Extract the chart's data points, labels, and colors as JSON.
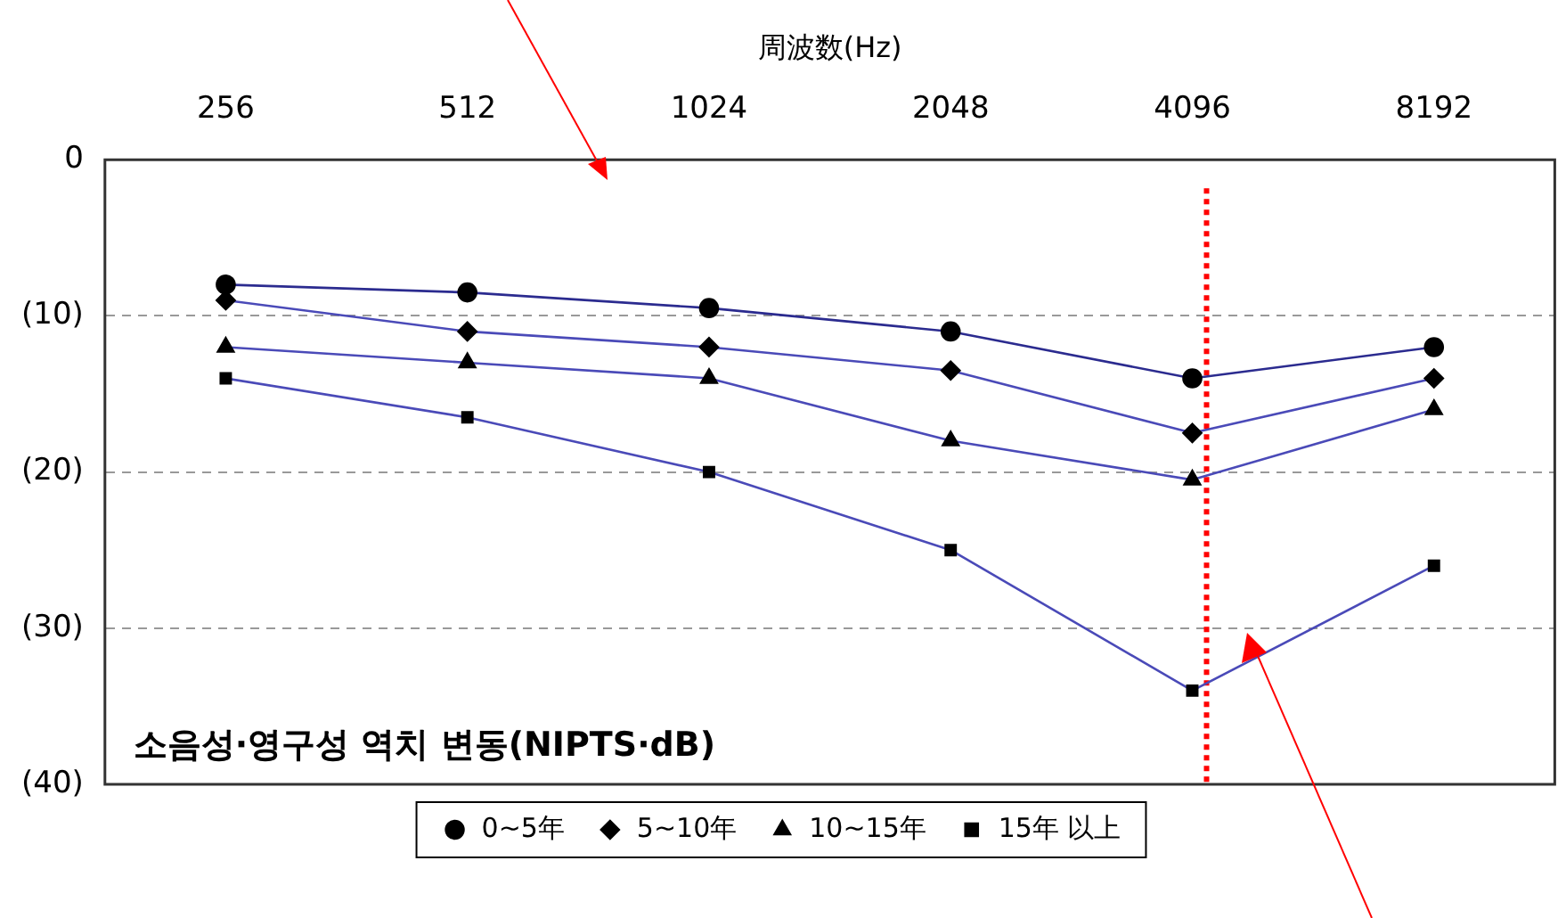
{
  "chart_data": {
    "type": "line",
    "xlabel": "周波数(Hz)",
    "categories": [
      "256",
      "512",
      "1024",
      "2048",
      "4096",
      "8192"
    ],
    "series": [
      {
        "name": "0~5年",
        "color": "#2b2b8f",
        "marker": "circle",
        "values": [
          8,
          8.5,
          9.5,
          11,
          14,
          12
        ]
      },
      {
        "name": "5~10年",
        "color": "#4a4ab8",
        "marker": "diamond",
        "values": [
          9,
          11,
          12,
          13.5,
          17.5,
          14
        ]
      },
      {
        "name": "10~15年",
        "color": "#4a4ab8",
        "marker": "triangle",
        "values": [
          12,
          13,
          14,
          18,
          20.5,
          16
        ]
      },
      {
        "name": "15年 以上",
        "color": "#4a4ab8",
        "marker": "square",
        "values": [
          14,
          16.5,
          20,
          25,
          34,
          26
        ]
      }
    ],
    "ylim": [
      40,
      0
    ],
    "yticks": [
      {
        "value": 0,
        "label": "0"
      },
      {
        "value": 10,
        "label": "(10)"
      },
      {
        "value": 20,
        "label": "(20)"
      },
      {
        "value": 30,
        "label": "(30)"
      },
      {
        "value": 40,
        "label": "(40)"
      }
    ],
    "grid": "y",
    "legend": "bottom",
    "line_style": "solid",
    "ref_lines": [
      {
        "axis": "x",
        "value": "4096",
        "color": "#ff0000",
        "line_style": "dotted"
      }
    ],
    "annotations": [
      "소음성·영구성 역치 변동(NIPTS·dB)"
    ]
  }
}
